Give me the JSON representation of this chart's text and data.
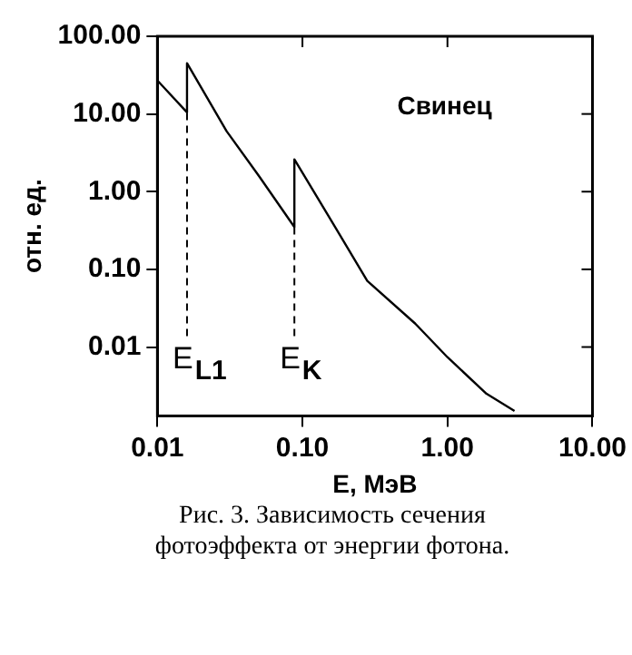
{
  "chart_data": {
    "type": "line",
    "xlabel": "E, МэВ",
    "ylabel": "отн. ед.",
    "log": "xy",
    "xlim": [
      0.01,
      10
    ],
    "ylim": [
      0.0013,
      100
    ],
    "xticks": [
      0.01,
      {
        "value": 0.1,
        "label": "0.10"
      },
      {
        "value": 1,
        "label": "1.00"
      },
      {
        "value": 10,
        "label": "10.00"
      }
    ],
    "yticks": [
      0.01,
      {
        "value": 0.1,
        "label": "0.10"
      },
      {
        "value": 1,
        "label": "1.00"
      },
      {
        "value": 10,
        "label": "10.00"
      },
      {
        "value": 100,
        "label": "100.00"
      }
    ],
    "grid": false,
    "legend": false,
    "series": [
      {
        "color": "#000000",
        "x": [
          0.01,
          0.016,
          0.016,
          0.03,
          0.05,
          0.088,
          0.088,
          0.15,
          0.28,
          0.6,
          1.0,
          1.86,
          2.9
        ],
        "values": [
          27,
          10.5,
          45,
          6,
          1.6,
          0.35,
          2.6,
          0.5,
          0.071,
          0.02,
          0.0074,
          0.0025,
          0.0015
        ]
      }
    ],
    "ref_lines": [
      {
        "axis": "x",
        "value": 0.016,
        "label": "E$_{L1}$",
        "line_style": "dashed"
      },
      {
        "axis": "x",
        "value": 0.088,
        "label": "E$_{K}$",
        "line_style": "dashed"
      }
    ],
    "annotations": [
      "Свинец",
      "Рис. 3.  Зависимость сечения фотоэффекта от энергии фотона."
    ]
  }
}
